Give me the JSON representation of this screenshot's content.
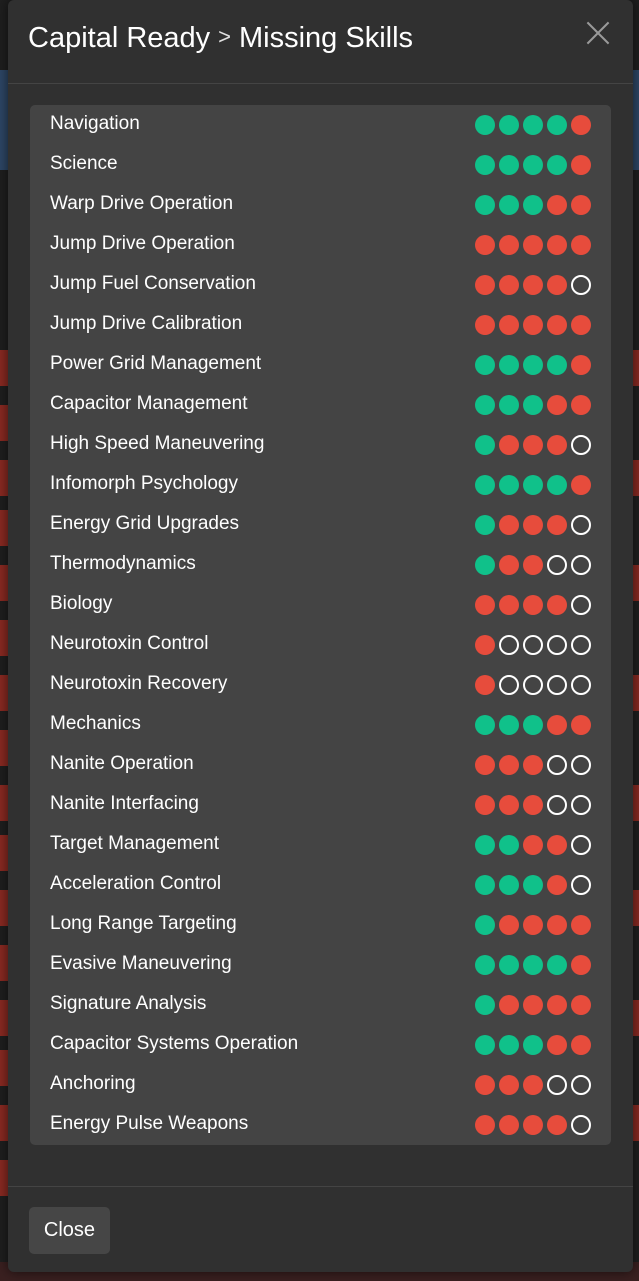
{
  "colors": {
    "trained": "#10c18a",
    "missing": "#e74c3c",
    "empty": "#ffffff",
    "modal_bg": "#303030",
    "panel_bg": "#444444"
  },
  "modal": {
    "title_part1": "Capital Ready",
    "separator": ">",
    "title_part2": "Missing Skills",
    "close_icon": "close-x-icon",
    "close_label": "Close"
  },
  "skills": [
    {
      "name": "Navigation",
      "levels": [
        "green",
        "green",
        "green",
        "green",
        "red"
      ]
    },
    {
      "name": "Science",
      "levels": [
        "green",
        "green",
        "green",
        "green",
        "red"
      ]
    },
    {
      "name": "Warp Drive Operation",
      "levels": [
        "green",
        "green",
        "green",
        "red",
        "red"
      ]
    },
    {
      "name": "Jump Drive Operation",
      "levels": [
        "red",
        "red",
        "red",
        "red",
        "red"
      ]
    },
    {
      "name": "Jump Fuel Conservation",
      "levels": [
        "red",
        "red",
        "red",
        "red",
        "empty"
      ]
    },
    {
      "name": "Jump Drive Calibration",
      "levels": [
        "red",
        "red",
        "red",
        "red",
        "red"
      ]
    },
    {
      "name": "Power Grid Management",
      "levels": [
        "green",
        "green",
        "green",
        "green",
        "red"
      ]
    },
    {
      "name": "Capacitor Management",
      "levels": [
        "green",
        "green",
        "green",
        "red",
        "red"
      ]
    },
    {
      "name": "High Speed Maneuvering",
      "levels": [
        "green",
        "red",
        "red",
        "red",
        "empty"
      ]
    },
    {
      "name": "Infomorph Psychology",
      "levels": [
        "green",
        "green",
        "green",
        "green",
        "red"
      ]
    },
    {
      "name": "Energy Grid Upgrades",
      "levels": [
        "green",
        "red",
        "red",
        "red",
        "empty"
      ]
    },
    {
      "name": "Thermodynamics",
      "levels": [
        "green",
        "red",
        "red",
        "empty",
        "empty"
      ]
    },
    {
      "name": "Biology",
      "levels": [
        "red",
        "red",
        "red",
        "red",
        "empty"
      ]
    },
    {
      "name": "Neurotoxin Control",
      "levels": [
        "red",
        "empty",
        "empty",
        "empty",
        "empty"
      ]
    },
    {
      "name": "Neurotoxin Recovery",
      "levels": [
        "red",
        "empty",
        "empty",
        "empty",
        "empty"
      ]
    },
    {
      "name": "Mechanics",
      "levels": [
        "green",
        "green",
        "green",
        "red",
        "red"
      ]
    },
    {
      "name": "Nanite Operation",
      "levels": [
        "red",
        "red",
        "red",
        "empty",
        "empty"
      ]
    },
    {
      "name": "Nanite Interfacing",
      "levels": [
        "red",
        "red",
        "red",
        "empty",
        "empty"
      ]
    },
    {
      "name": "Target Management",
      "levels": [
        "green",
        "green",
        "red",
        "red",
        "empty"
      ]
    },
    {
      "name": "Acceleration Control",
      "levels": [
        "green",
        "green",
        "green",
        "red",
        "empty"
      ]
    },
    {
      "name": "Long Range Targeting",
      "levels": [
        "green",
        "red",
        "red",
        "red",
        "red"
      ]
    },
    {
      "name": "Evasive Maneuvering",
      "levels": [
        "green",
        "green",
        "green",
        "green",
        "red"
      ]
    },
    {
      "name": "Signature Analysis",
      "levels": [
        "green",
        "red",
        "red",
        "red",
        "red"
      ]
    },
    {
      "name": "Capacitor Systems Operation",
      "levels": [
        "green",
        "green",
        "green",
        "red",
        "red"
      ]
    },
    {
      "name": "Anchoring",
      "levels": [
        "red",
        "red",
        "red",
        "empty",
        "empty"
      ]
    },
    {
      "name": "Energy Pulse Weapons",
      "levels": [
        "red",
        "red",
        "red",
        "red",
        "empty"
      ]
    }
  ]
}
